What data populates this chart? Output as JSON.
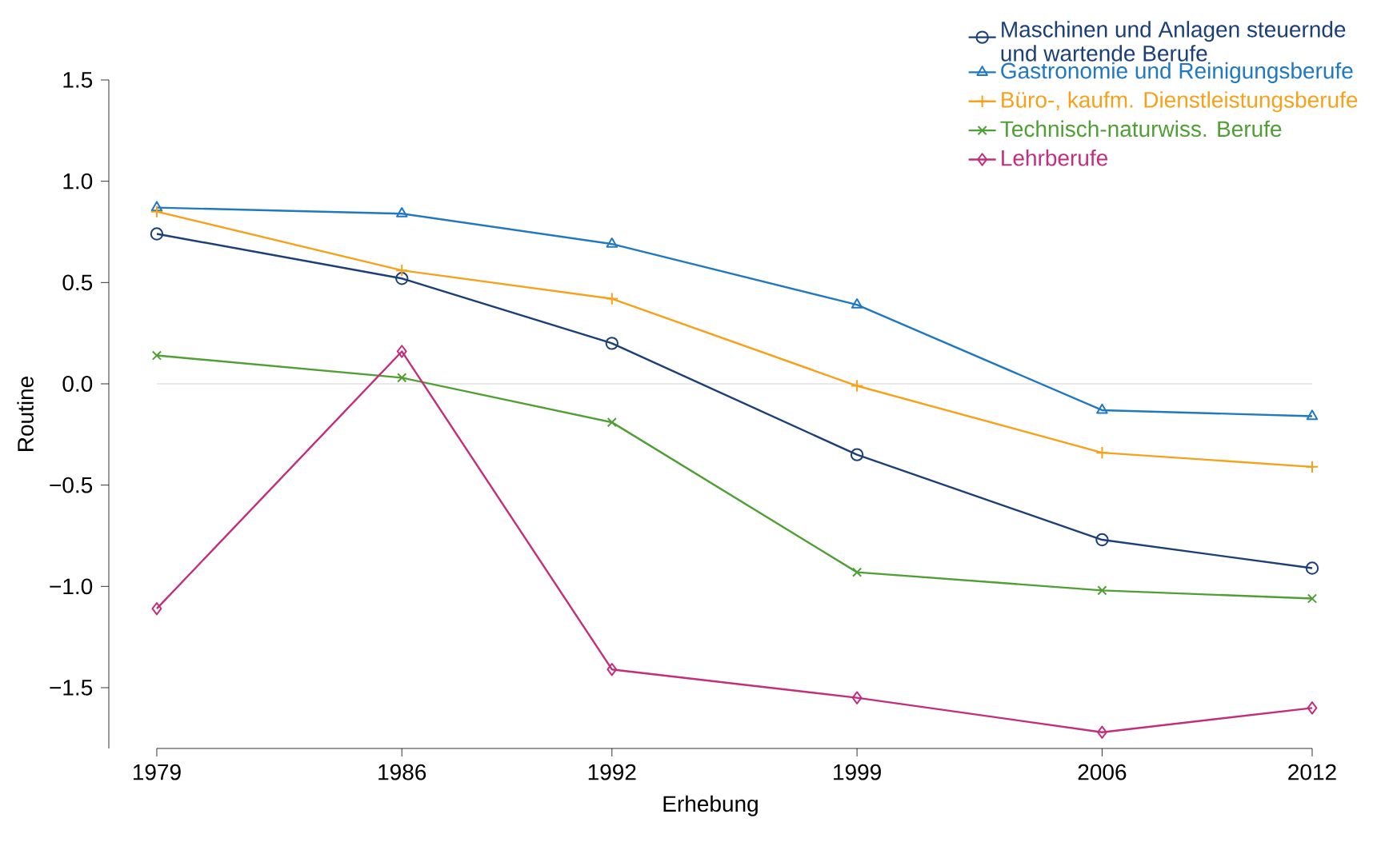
{
  "chart_data": {
    "type": "line",
    "xlabel": "Erhebung",
    "ylabel": "Routine",
    "x": [
      1979,
      1986,
      1992,
      1999,
      2006,
      2012
    ],
    "xlim": [
      1979,
      2012
    ],
    "xticks": [
      1979,
      1986,
      1992,
      1999,
      2006,
      2012
    ],
    "ylim": [
      -1.8,
      1.5
    ],
    "yticks": [
      {
        "value": -1.5,
        "label": "−1.5"
      },
      {
        "value": -1.0,
        "label": "−1.0"
      },
      {
        "value": -0.5,
        "label": "−0.5"
      },
      {
        "value": 0.0,
        "label": "0.0"
      },
      {
        "value": 0.5,
        "label": "0.5"
      },
      {
        "value": 1.0,
        "label": "1.0"
      },
      {
        "value": 1.5,
        "label": "1.5"
      }
    ],
    "grid": false,
    "legend": "top right",
    "ref_lines": [
      {
        "axis": "y",
        "value": 0,
        "color": "#c8c8c8"
      }
    ],
    "series": [
      {
        "name": "Maschinen und Anlagen steuernde und wartende Berufe",
        "color": "#1c3f78",
        "marker": "circle",
        "values": [
          0.74,
          0.52,
          0.2,
          -0.35,
          -0.77,
          -0.91
        ]
      },
      {
        "name": "Gastronomie und Reinigungsberufe",
        "color": "#1f78c1",
        "marker": "triangle",
        "values": [
          0.87,
          0.84,
          0.69,
          0.39,
          -0.13,
          -0.16
        ]
      },
      {
        "name": "Büro-, kaufm. Dienstleistungsberufe",
        "color": "#f7a11a",
        "marker": "plus",
        "values": [
          0.85,
          0.56,
          0.42,
          -0.01,
          -0.34,
          -0.41
        ]
      },
      {
        "name": "Technisch-naturwiss. Berufe",
        "color": "#4f9f35",
        "marker": "cross",
        "values": [
          0.14,
          0.03,
          -0.19,
          -0.93,
          -1.02,
          -1.06
        ]
      },
      {
        "name": "Lehrberufe",
        "color": "#c42d7b",
        "marker": "diamond",
        "values": [
          -1.11,
          0.16,
          -1.41,
          -1.55,
          -1.72,
          -1.6
        ]
      }
    ]
  }
}
